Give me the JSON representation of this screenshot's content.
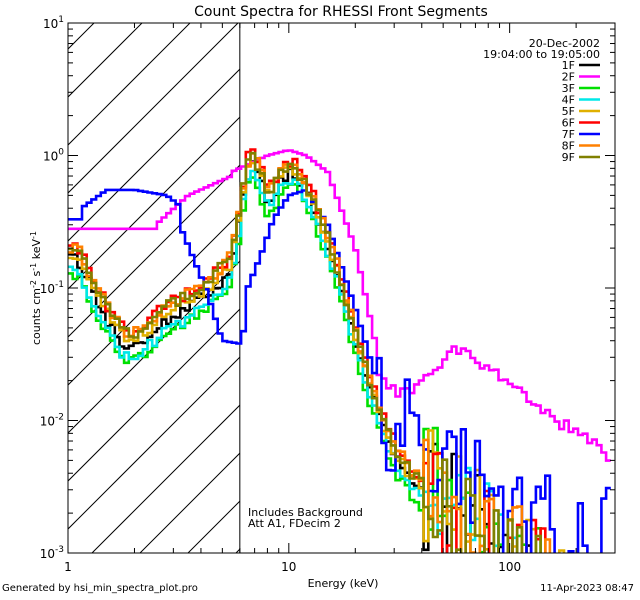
{
  "chart_data": {
    "type": "line",
    "title": "Count Spectra for RHESSI Front Segments",
    "xlabel": "Energy (keV)",
    "ylabel_parts": {
      "base": "counts cm",
      "exp1": "-2",
      "mid1": " s",
      "exp2": "-1",
      "mid2": " keV",
      "exp3": "-1"
    },
    "xscale": "log",
    "yscale": "log",
    "xlim": [
      1,
      300
    ],
    "ylim": [
      0.001,
      10
    ],
    "x_ticks": [
      {
        "value": 1,
        "label": "1"
      },
      {
        "value": 10,
        "label": "10"
      },
      {
        "value": 100,
        "label": "100"
      }
    ],
    "y_ticks": [
      {
        "value": 0.001,
        "base": "10",
        "exp": "-3"
      },
      {
        "value": 0.01,
        "base": "10",
        "exp": "-2"
      },
      {
        "value": 0.1,
        "base": "10",
        "exp": "-1"
      },
      {
        "value": 1,
        "base": "10",
        "exp": "0"
      },
      {
        "value": 10,
        "base": "10",
        "exp": "1"
      }
    ],
    "hatched_region_max_keV": 6,
    "date": "20-Dec-2002",
    "time_range": "19:04:00 to 19:05:00",
    "annotation_lines": [
      "Includes Background",
      "Att A1, FDecim 2"
    ],
    "legend_position": "top-right",
    "series": [
      {
        "name": "1F",
        "color": "#000000",
        "scale": 0.85,
        "flat": 0.045,
        "noise": 0.35
      },
      {
        "name": "2F",
        "color": "#ff00ff",
        "special": "2F"
      },
      {
        "name": "3F",
        "color": "#00e000",
        "scale": 0.65,
        "flat": 0.052,
        "noise": 0.3
      },
      {
        "name": "4F",
        "color": "#00e8e8",
        "scale": 0.75,
        "flat": 0.03,
        "noise": 0.3
      },
      {
        "name": "5F",
        "color": "#e0b000",
        "scale": 0.9,
        "flat": 0.06,
        "noise": 0.35
      },
      {
        "name": "6F",
        "color": "#ff0000",
        "scale": 1.05,
        "flat": 0.06,
        "noise": 0.35
      },
      {
        "name": "7F",
        "color": "#0000ff",
        "special": "7F"
      },
      {
        "name": "8F",
        "color": "#ff8000",
        "scale": 1.0,
        "flat": 0.065,
        "noise": 0.35
      },
      {
        "name": "9F",
        "color": "#808000",
        "scale": 0.95,
        "flat": 0.08,
        "noise": 0.35
      }
    ],
    "common_shape": {
      "energies": [
        1.1,
        1.25,
        1.4,
        1.6,
        1.8,
        2.0,
        2.2,
        2.5,
        2.8,
        3.2,
        3.6,
        4.0,
        4.5,
        5.0,
        5.5,
        6.0,
        6.5,
        7.0,
        7.5,
        8.0,
        8.5,
        9.0,
        9.5,
        10.0,
        10.5,
        11.0,
        12.0,
        13.0,
        14.0,
        15.0,
        16.0,
        17.0,
        18.0,
        19.0,
        20.0,
        21.0,
        22.0,
        23.0,
        24.0,
        25.0,
        27.0,
        29.0,
        31.0,
        34.0,
        37.0,
        40.0
      ],
      "values": [
        0.2,
        0.13,
        0.085,
        0.06,
        0.045,
        0.045,
        0.05,
        0.06,
        0.07,
        0.08,
        0.09,
        0.1,
        0.12,
        0.14,
        0.17,
        0.4,
        0.9,
        1.05,
        0.75,
        0.55,
        0.6,
        0.7,
        0.8,
        0.85,
        0.9,
        0.8,
        0.62,
        0.47,
        0.34,
        0.25,
        0.18,
        0.13,
        0.09,
        0.065,
        0.048,
        0.036,
        0.028,
        0.022,
        0.018,
        0.014,
        0.01,
        0.0075,
        0.006,
        0.0048,
        0.004,
        0.0035
      ]
    }
  },
  "footer": {
    "left": "Generated by hsi_min_spectra_plot.pro",
    "right": "11-Apr-2023 08:47"
  }
}
